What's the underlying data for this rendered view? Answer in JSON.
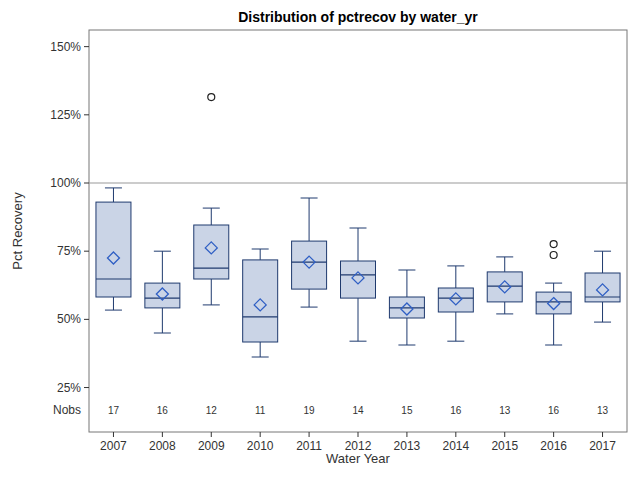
{
  "chart_data": {
    "type": "box",
    "title": "Distribution of pctrecov by water_yr",
    "x_label": "Water Year",
    "y_label": "Pct Recovery",
    "categories": [
      "2007",
      "2008",
      "2009",
      "2010",
      "2011",
      "2012",
      "2013",
      "2014",
      "2015",
      "2016",
      "2017"
    ],
    "whisker_low": [
      53.4,
      45,
      55.3,
      36.2,
      54.5,
      42,
      40.6,
      42,
      52,
      40.6,
      49
    ],
    "q1": [
      58.2,
      54.2,
      64.8,
      41.7,
      61.1,
      57.8,
      50.5,
      52.7,
      56.4,
      52,
      56.4
    ],
    "median": [
      64.8,
      57.8,
      68.8,
      50.9,
      71,
      66.3,
      54.2,
      57.8,
      62.2,
      56.4,
      58.2
    ],
    "q3": [
      93,
      63.3,
      84.6,
      71.8,
      78.7,
      71.4,
      58.2,
      61.5,
      67.4,
      60,
      67
    ],
    "whisker_high": [
      98.2,
      75,
      90.8,
      75.8,
      94.5,
      83.5,
      68.1,
      69.6,
      72.9,
      63.3,
      75
    ],
    "mean": [
      72.5,
      59.3,
      76.2,
      55.3,
      71,
      65.2,
      53.8,
      57.5,
      61.9,
      55.8,
      60.8
    ],
    "outliers": [
      [],
      [],
      [
        131.5
      ],
      [],
      [],
      [],
      [],
      [],
      [],
      [
        77.6,
        73.6
      ],
      []
    ],
    "nobs_label": "Nobs",
    "nobs": [
      17,
      16,
      12,
      11,
      19,
      14,
      15,
      16,
      13,
      16,
      13
    ],
    "reference_line": 100,
    "color": "#cad4e6",
    "marker": "diamond",
    "ylim": [
      8.7,
      156.1
    ],
    "yticks": [
      {
        "value": 25,
        "label": "25%"
      },
      {
        "value": 50,
        "label": "50%"
      },
      {
        "value": 75,
        "label": "75%"
      },
      {
        "value": 100,
        "label": "100%"
      },
      {
        "value": 125,
        "label": "125%"
      },
      {
        "value": 150,
        "label": "150%"
      }
    ]
  }
}
